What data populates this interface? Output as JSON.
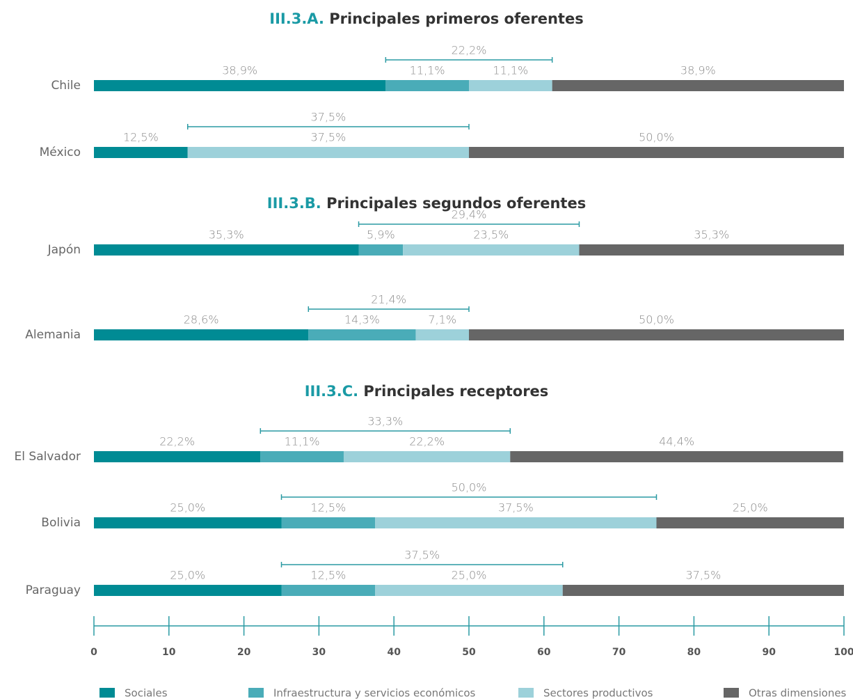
{
  "chart_data": {
    "type": "stacked-bar",
    "xlim": [
      0,
      100
    ],
    "xticks": [
      0,
      10,
      20,
      30,
      40,
      50,
      60,
      70,
      80,
      90,
      100
    ],
    "legend": [
      {
        "name": "Sociales",
        "color": "#008b94"
      },
      {
        "name": "Infraestructura y servicios económicos",
        "color": "#4aacb8"
      },
      {
        "name": "Sectores productivos",
        "color": "#9dd1da"
      },
      {
        "name": "Otras dimensiones",
        "color": "#666666"
      }
    ],
    "panels": [
      {
        "title_prefix": "III.3.A.",
        "title": "Principales primeros oferentes",
        "categories": [
          "Chile",
          "México"
        ],
        "series": [
          {
            "values": [
              38.9,
              12.5
            ],
            "value_labels": [
              "38,9%",
              "12,5%"
            ]
          },
          {
            "values": [
              11.1,
              null
            ],
            "value_labels": [
              "11,1%",
              null
            ]
          },
          {
            "values": [
              11.1,
              37.5
            ],
            "value_labels": [
              "11,1%",
              "37,5%"
            ]
          },
          {
            "values": [
              38.9,
              50.0
            ],
            "value_labels": [
              "38,9%",
              "50,0%"
            ]
          }
        ],
        "bracket_values": [
          22.2,
          37.5
        ],
        "bracket_labels": [
          "22,2%",
          "37,5%"
        ]
      },
      {
        "title_prefix": "III.3.B.",
        "title": "Principales segundos oferentes",
        "categories": [
          "Japón",
          "Alemania"
        ],
        "series": [
          {
            "values": [
              35.3,
              28.6
            ],
            "value_labels": [
              "35,3%",
              "28,6%"
            ]
          },
          {
            "values": [
              5.9,
              14.3
            ],
            "value_labels": [
              "5,9%",
              "14,3%"
            ]
          },
          {
            "values": [
              23.5,
              7.1
            ],
            "value_labels": [
              "23,5%",
              "7,1%"
            ]
          },
          {
            "values": [
              35.3,
              50.0
            ],
            "value_labels": [
              "35,3%",
              "50,0%"
            ]
          }
        ],
        "bracket_values": [
          29.4,
          21.4
        ],
        "bracket_labels": [
          "29,4%",
          "21,4%"
        ]
      },
      {
        "title_prefix": "III.3.C.",
        "title": "Principales receptores",
        "categories": [
          "El Salvador",
          "Bolivia",
          "Paraguay"
        ],
        "series": [
          {
            "values": [
              22.2,
              25.0,
              25.0
            ],
            "value_labels": [
              "22,2%",
              "25,0%",
              "25,0%"
            ]
          },
          {
            "values": [
              11.1,
              12.5,
              12.5
            ],
            "value_labels": [
              "11,1%",
              "12,5%",
              "12,5%"
            ]
          },
          {
            "values": [
              22.2,
              37.5,
              25.0
            ],
            "value_labels": [
              "22,2%",
              "37,5%",
              "25,0%"
            ]
          },
          {
            "values": [
              44.4,
              25.0,
              37.5
            ],
            "value_labels": [
              "44,4%",
              "25,0%",
              "37,5%"
            ]
          }
        ],
        "bracket_values": [
          33.3,
          50.0,
          37.5
        ],
        "bracket_labels": [
          "33,3%",
          "50,0%",
          "37,5%"
        ]
      }
    ]
  }
}
